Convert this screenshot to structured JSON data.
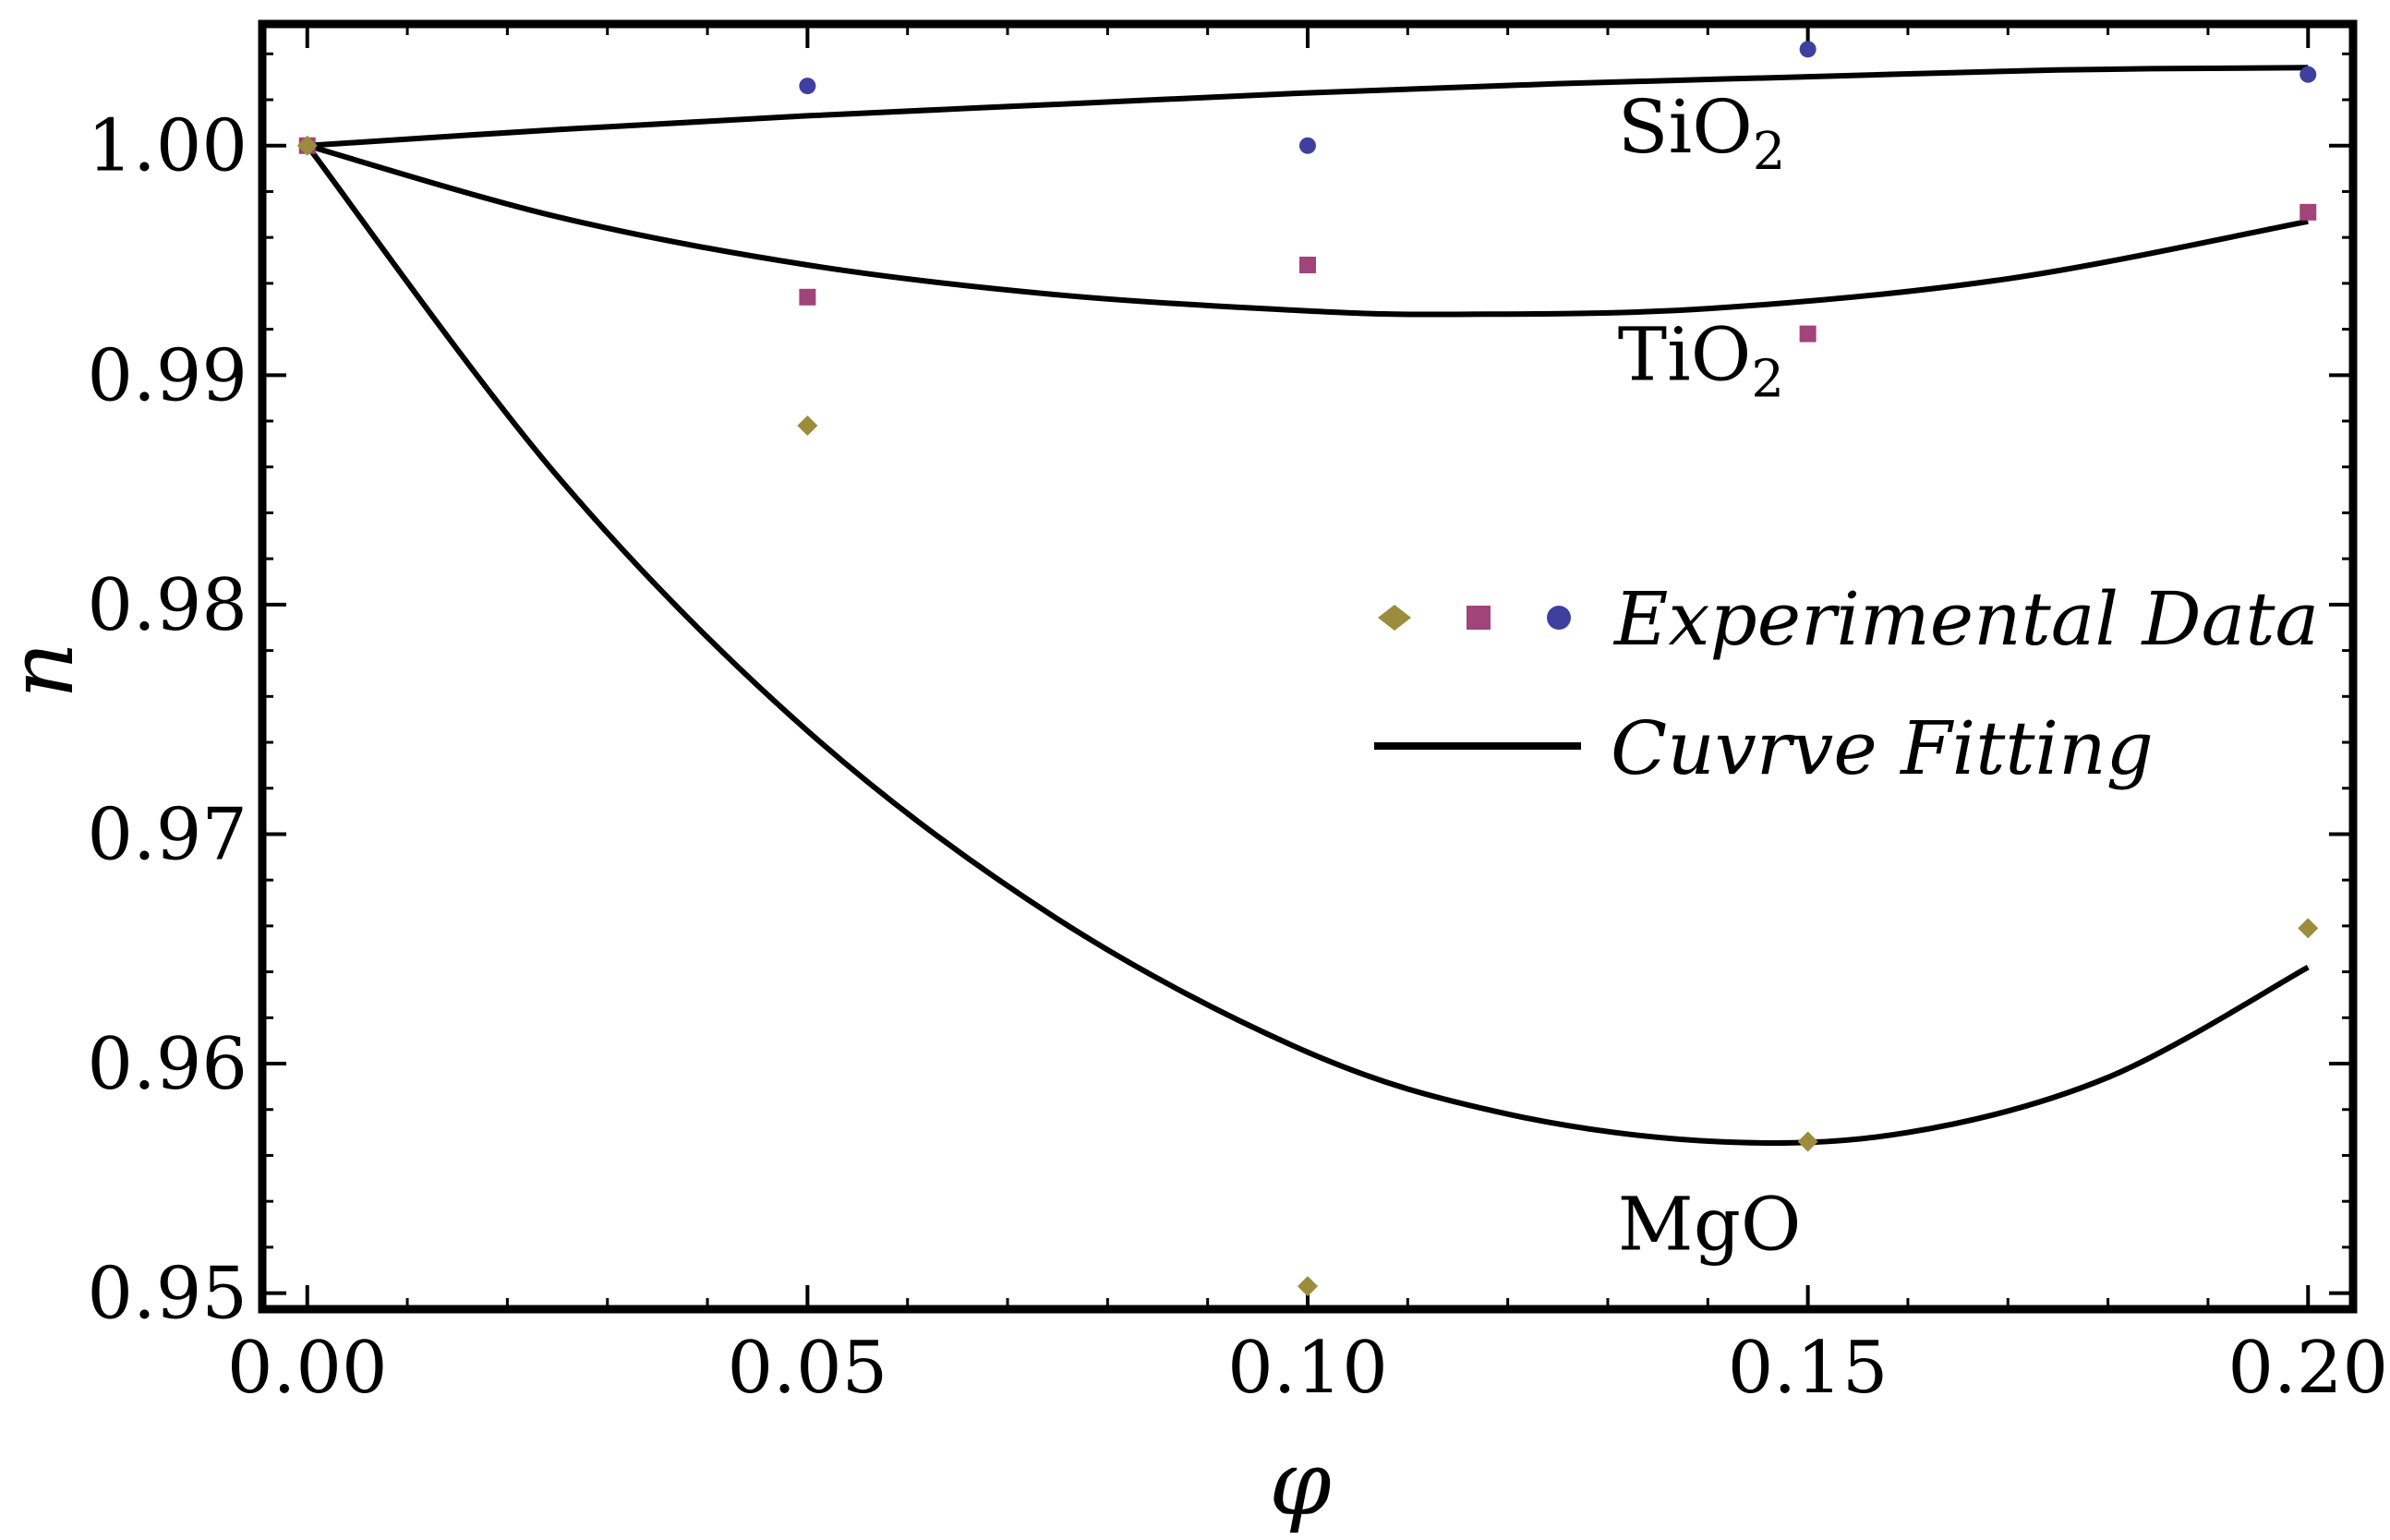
{
  "chart_data": {
    "type": "scatter",
    "xlabel": "φ",
    "ylabel": "n",
    "xlim": [
      -0.0045,
      0.2045
    ],
    "ylim": [
      0.9493,
      1.0053
    ],
    "x_ticks": [
      {
        "value": 0.0,
        "label": "0.00"
      },
      {
        "value": 0.05,
        "label": "0.05"
      },
      {
        "value": 0.1,
        "label": "0.10"
      },
      {
        "value": 0.15,
        "label": "0.15"
      },
      {
        "value": 0.2,
        "label": "0.20"
      }
    ],
    "y_ticks": [
      {
        "value": 0.95,
        "label": "0.95"
      },
      {
        "value": 0.96,
        "label": "0.96"
      },
      {
        "value": 0.97,
        "label": "0.97"
      },
      {
        "value": 0.98,
        "label": "0.98"
      },
      {
        "value": 0.99,
        "label": "0.99"
      },
      {
        "value": 1.0,
        "label": "1.00"
      }
    ],
    "x_minor_step": 0.01,
    "y_minor_step": 0.002,
    "series": [
      {
        "name": "SiO2",
        "label_main": "SiO",
        "label_sub": "2",
        "marker": "circle",
        "color": "#3f3fa0",
        "points": [
          [
            0.0,
            1.0
          ],
          [
            0.05,
            1.0026
          ],
          [
            0.1,
            1.0
          ],
          [
            0.15,
            1.0042
          ],
          [
            0.2,
            1.0031
          ]
        ],
        "fit": [
          [
            0.0,
            1.0
          ],
          [
            0.025,
            1.0007
          ],
          [
            0.05,
            1.0013
          ],
          [
            0.075,
            1.0018
          ],
          [
            0.1,
            1.0023
          ],
          [
            0.125,
            1.0027
          ],
          [
            0.15,
            1.003
          ],
          [
            0.175,
            1.0033
          ],
          [
            0.2,
            1.0034
          ]
        ],
        "label_at": [
          0.131,
          0.9997
        ]
      },
      {
        "name": "TiO2",
        "label_main": "TiO",
        "label_sub": "2",
        "marker": "square",
        "color": "#a0447a",
        "points": [
          [
            0.0,
            1.0
          ],
          [
            0.05,
            0.9934
          ],
          [
            0.1,
            0.9948
          ],
          [
            0.15,
            0.9918
          ],
          [
            0.2,
            0.9971
          ]
        ],
        "fit": [
          [
            0.0,
            1.0
          ],
          [
            0.025,
            0.9969
          ],
          [
            0.05,
            0.9948
          ],
          [
            0.075,
            0.9935
          ],
          [
            0.1,
            0.9928
          ],
          [
            0.115,
            0.99265
          ],
          [
            0.14,
            0.9929
          ],
          [
            0.17,
            0.9942
          ],
          [
            0.2,
            0.9967
          ]
        ],
        "label_at": [
          0.131,
          0.9898
        ]
      },
      {
        "name": "MgO",
        "label_main": "MgO",
        "label_sub": "",
        "marker": "diamond",
        "color": "#9b8d3d",
        "points": [
          [
            0.0,
            1.0
          ],
          [
            0.05,
            0.9878
          ],
          [
            0.1,
            0.9503
          ],
          [
            0.15,
            0.9566
          ],
          [
            0.2,
            0.9659
          ]
        ],
        "fit": [
          [
            0.0,
            1.0
          ],
          [
            0.025,
            0.9856
          ],
          [
            0.05,
            0.9745
          ],
          [
            0.075,
            0.9663
          ],
          [
            0.1,
            0.9605
          ],
          [
            0.12,
            0.9578
          ],
          [
            0.141,
            0.9566
          ],
          [
            0.16,
            0.957
          ],
          [
            0.18,
            0.9594
          ],
          [
            0.2,
            0.9642
          ]
        ],
        "label_at": [
          0.131,
          0.9519
        ]
      }
    ],
    "legend": {
      "placement": "center-right",
      "entries": [
        {
          "kind": "markers",
          "label": "Experimental Data"
        },
        {
          "kind": "line",
          "label": "Cuvrve Fitting"
        }
      ]
    }
  }
}
